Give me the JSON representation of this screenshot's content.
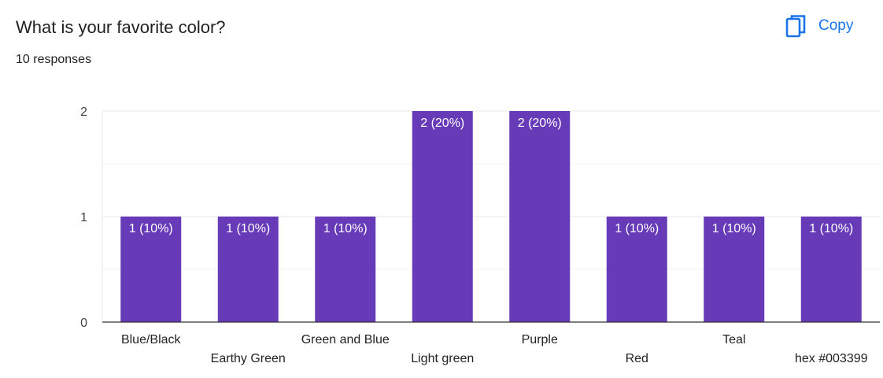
{
  "header": {
    "title": "What is your favorite color?",
    "responses": "10 responses",
    "copy_label": "Copy"
  },
  "colors": {
    "bar": "#673ab7",
    "accent": "#1a73e8",
    "grid": "#e8e8e8",
    "axis": "#333333"
  },
  "icons": {
    "copy": "copy-icon"
  },
  "chart_data": {
    "type": "bar",
    "title": "What is your favorite color?",
    "categories": [
      "Blue/Black",
      "Earthy Green",
      "Green and Blue",
      "Light green",
      "Purple",
      "Red",
      "Teal",
      "hex #003399"
    ],
    "values": [
      1,
      1,
      1,
      2,
      2,
      1,
      1,
      1
    ],
    "data_labels": [
      "1 (10%)",
      "1 (10%)",
      "1 (10%)",
      "2 (20%)",
      "2 (20%)",
      "1 (10%)",
      "1 (10%)",
      "1 (10%)"
    ],
    "yticks": [
      0,
      1,
      2
    ],
    "ylim": [
      0,
      2
    ],
    "xlabel": "",
    "ylabel": "",
    "grid": true,
    "legend": "none"
  }
}
